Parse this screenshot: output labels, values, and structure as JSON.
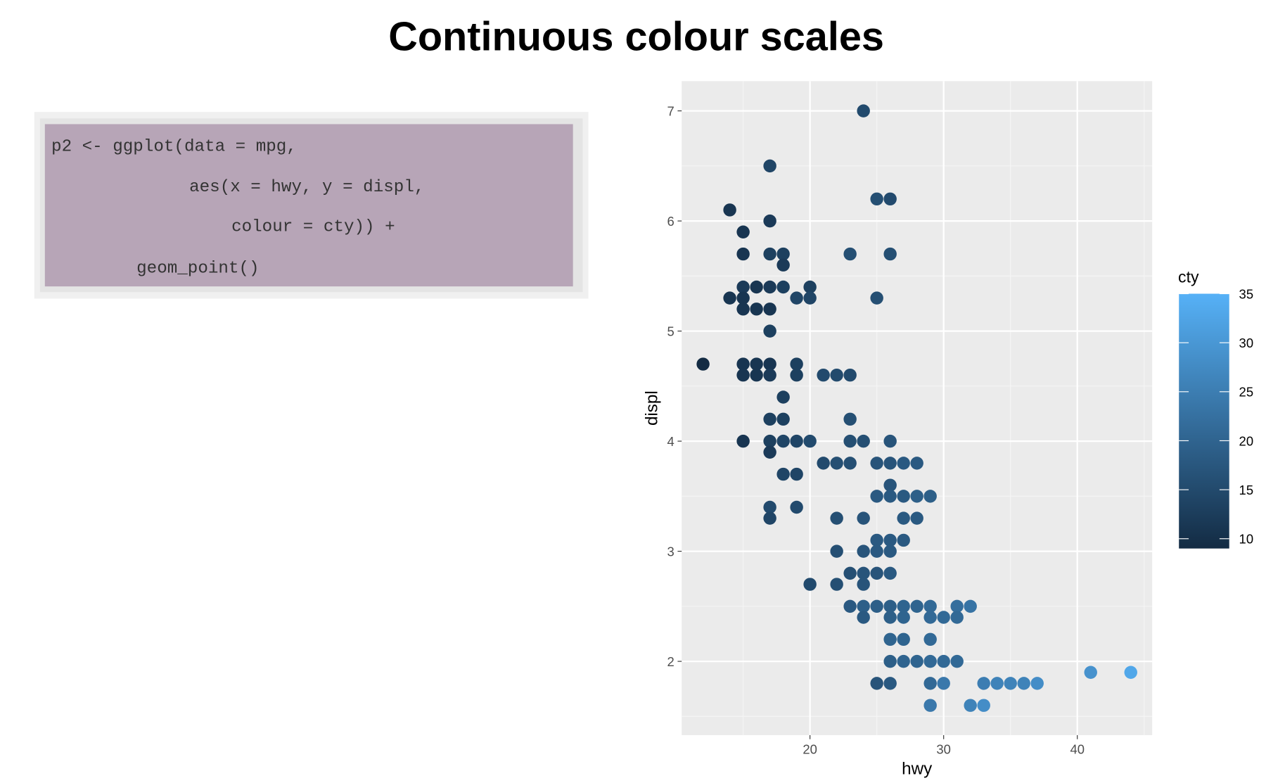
{
  "slide": {
    "title": "Continuous colour scales",
    "code": [
      "p2 <- ggplot(data = mpg,",
      "aes(x = hwy, y = displ,",
      "colour = cty)) +",
      "geom_point()"
    ]
  },
  "chart_data": {
    "type": "scatter",
    "x_label": "hwy",
    "y_label": "displ",
    "x": [
      24,
      17,
      14,
      15,
      17,
      25,
      26,
      15,
      17,
      18,
      23,
      26,
      18,
      14,
      15,
      16,
      17,
      18,
      20,
      15,
      19,
      20,
      25,
      15,
      16,
      17,
      17,
      12,
      15,
      16,
      17,
      19,
      15,
      16,
      17,
      19,
      21,
      22,
      23,
      18,
      17,
      18,
      23,
      15,
      17,
      18,
      19,
      20,
      23,
      24,
      26,
      17,
      21,
      22,
      23,
      25,
      26,
      27,
      28,
      18,
      19,
      26,
      25,
      26,
      27,
      28,
      29,
      17,
      19,
      17,
      22,
      24,
      27,
      28,
      25,
      26,
      27,
      22,
      24,
      25,
      26,
      23,
      24,
      25,
      26,
      20,
      22,
      24,
      23,
      24,
      25,
      26,
      27,
      28,
      29,
      31,
      32,
      24,
      26,
      27,
      29,
      30,
      31,
      26,
      27,
      29,
      26,
      27,
      28,
      29,
      30,
      31,
      41,
      44,
      25,
      26,
      29,
      30,
      33,
      34,
      35,
      36,
      37,
      29,
      32,
      33
    ],
    "values": [
      7,
      6.5,
      6.1,
      5.9,
      6,
      6.2,
      6.2,
      5.7,
      5.7,
      5.7,
      5.7,
      5.7,
      5.6,
      5.3,
      5.4,
      5.4,
      5.4,
      5.4,
      5.4,
      5.3,
      5.3,
      5.3,
      5.3,
      5.2,
      5.2,
      5.2,
      5,
      4.7,
      4.7,
      4.7,
      4.7,
      4.7,
      4.6,
      4.6,
      4.6,
      4.6,
      4.6,
      4.6,
      4.6,
      4.4,
      4.2,
      4.2,
      4.2,
      4,
      4,
      4,
      4,
      4,
      4,
      4,
      4,
      3.9,
      3.8,
      3.8,
      3.8,
      3.8,
      3.8,
      3.8,
      3.8,
      3.7,
      3.7,
      3.6,
      3.5,
      3.5,
      3.5,
      3.5,
      3.5,
      3.4,
      3.4,
      3.3,
      3.3,
      3.3,
      3.3,
      3.3,
      3.1,
      3.1,
      3.1,
      3,
      3,
      3,
      3,
      2.8,
      2.8,
      2.8,
      2.8,
      2.7,
      2.7,
      2.7,
      2.5,
      2.5,
      2.5,
      2.5,
      2.5,
      2.5,
      2.5,
      2.5,
      2.5,
      2.4,
      2.4,
      2.4,
      2.4,
      2.4,
      2.4,
      2.2,
      2.2,
      2.2,
      2,
      2,
      2,
      2,
      2,
      2,
      1.9,
      1.9,
      1.8,
      1.8,
      1.8,
      1.8,
      1.8,
      1.8,
      1.8,
      1.8,
      1.8,
      1.6,
      1.6,
      1.6
    ],
    "colour": {
      "title": "cty",
      "low": "#132B43",
      "high": "#56B1F7",
      "lim": [
        9,
        35
      ],
      "ticks": [
        10,
        15,
        20,
        25,
        30,
        35
      ],
      "values": [
        15,
        14,
        11,
        11,
        12,
        16,
        15,
        11,
        13,
        13,
        16,
        16,
        12,
        11,
        12,
        11,
        12,
        13,
        13,
        11,
        14,
        14,
        16,
        11,
        11,
        11,
        13,
        9,
        11,
        11,
        11,
        13,
        11,
        11,
        12,
        13,
        15,
        15,
        15,
        13,
        13,
        13,
        16,
        11,
        13,
        14,
        14,
        15,
        16,
        16,
        17,
        12,
        15,
        16,
        16,
        17,
        17,
        18,
        18,
        14,
        14,
        17,
        18,
        18,
        18,
        19,
        19,
        15,
        15,
        14,
        16,
        17,
        18,
        18,
        18,
        18,
        18,
        16,
        17,
        18,
        18,
        16,
        17,
        17,
        18,
        15,
        16,
        17,
        18,
        19,
        19,
        19,
        20,
        20,
        21,
        22,
        23,
        18,
        19,
        20,
        21,
        21,
        21,
        20,
        20,
        21,
        19,
        20,
        20,
        21,
        21,
        21,
        29,
        33,
        17,
        18,
        21,
        24,
        25,
        26,
        26,
        26,
        28,
        24,
        26,
        28
      ]
    },
    "xlim": [
      10.4,
      45.6
    ],
    "ylim": [
      1.33,
      7.27
    ],
    "xticks": [
      20,
      30,
      40
    ],
    "yticks": [
      2,
      3,
      4,
      5,
      6,
      7
    ],
    "grid": true
  }
}
